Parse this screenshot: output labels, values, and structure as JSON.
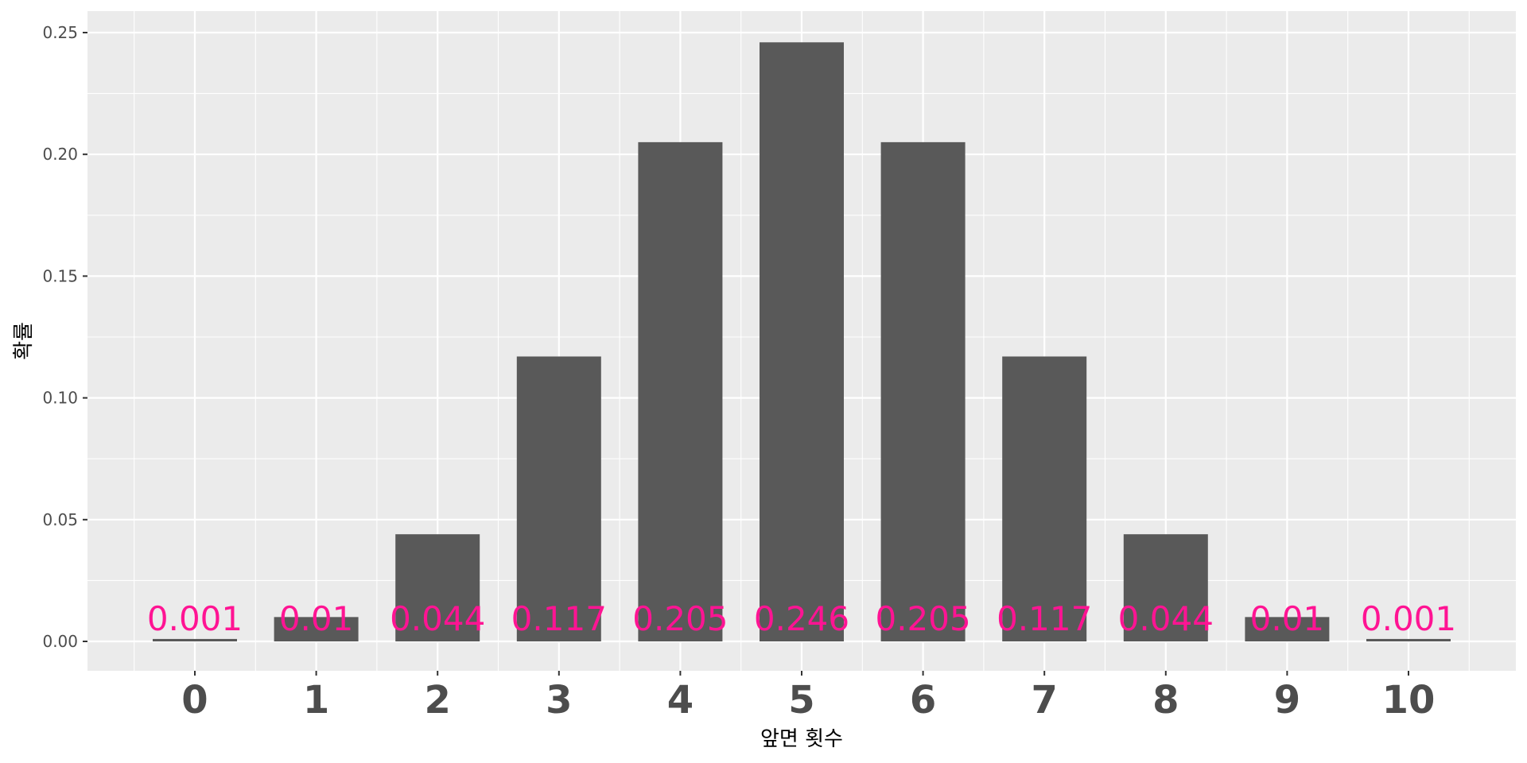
{
  "chart_data": {
    "type": "bar",
    "categories": [
      "0",
      "1",
      "2",
      "3",
      "4",
      "5",
      "6",
      "7",
      "8",
      "9",
      "10"
    ],
    "values": [
      0.001,
      0.01,
      0.044,
      0.117,
      0.205,
      0.246,
      0.205,
      0.117,
      0.044,
      0.01,
      0.001
    ],
    "data_labels": [
      "0.001",
      "0.01",
      "0.044",
      "0.117",
      "0.205",
      "0.246",
      "0.205",
      "0.117",
      "0.044",
      "0.01",
      "0.001"
    ],
    "xlabel": "앞면 횟수",
    "ylabel": "확률",
    "ylim": [
      0,
      0.255
    ],
    "yticks": [
      0,
      0.05,
      0.1,
      0.15,
      0.2,
      0.25
    ],
    "ytick_labels": [
      "0.00",
      "0.05",
      "0.10",
      "0.15",
      "0.20",
      "0.25"
    ],
    "grid": true,
    "colors": {
      "bar": "#595959",
      "label": "#ff1493",
      "panel": "#ebebeb",
      "grid": "#ffffff"
    }
  }
}
